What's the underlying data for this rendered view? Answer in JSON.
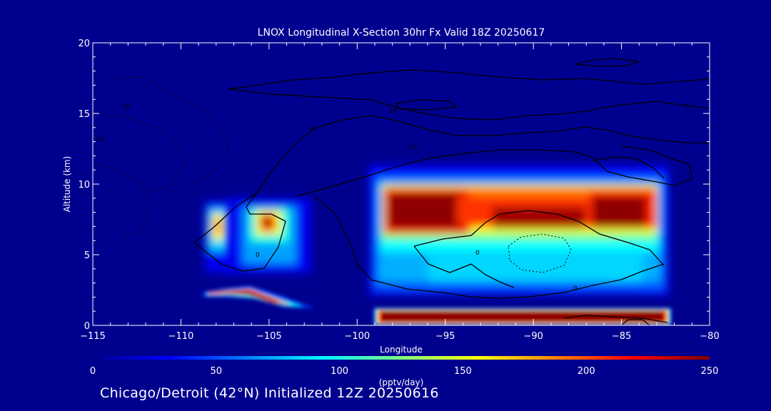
{
  "chart_data": {
    "type": "heatmap",
    "title": "LNOX Longitudinal X-Section 30hr  Fx Valid 18Z 20250617",
    "xlabel": "Longitude",
    "ylabel": "Altitude (km)",
    "xlim": [
      -115,
      -80
    ],
    "ylim": [
      0,
      20
    ],
    "xticks": [
      "-115",
      "-110",
      "-105",
      "-100",
      "-95",
      "-90",
      "-85",
      "-80"
    ],
    "xtick_values": [
      -115,
      -110,
      -105,
      -100,
      -95,
      -90,
      -85,
      -80
    ],
    "yticks": [
      "0",
      "5",
      "10",
      "15",
      "20"
    ],
    "ytick_values": [
      0,
      5,
      10,
      15,
      20
    ],
    "colorbar": {
      "label": "(pptv/day)",
      "range": [
        0,
        250
      ],
      "ticks": [
        "0",
        "50",
        "100",
        "150",
        "200",
        "250"
      ],
      "tick_values": [
        0,
        50,
        100,
        150,
        200,
        250
      ]
    },
    "regions": [
      {
        "name": "west-upper-left",
        "lon": [
          -109,
          -107
        ],
        "alt": [
          4.5,
          8.5
        ],
        "peak": 170
      },
      {
        "name": "west-upper-right",
        "lon": [
          -107,
          -103
        ],
        "alt": [
          4.0,
          8.5
        ],
        "peak": 230
      },
      {
        "name": "west-low",
        "lon": [
          -109,
          -102.5
        ],
        "alt": [
          1.1,
          2.6
        ],
        "peak": 250
      },
      {
        "name": "east-upper",
        "lon": [
          -98.5,
          -82.5
        ],
        "alt": [
          2.5,
          10.8
        ],
        "peak": 250
      },
      {
        "name": "east-low",
        "lon": [
          -99,
          -82.5
        ],
        "alt": [
          0.05,
          1.1
        ],
        "peak": 250
      }
    ],
    "contour_labels": [
      "10",
      "0",
      "-10",
      "0",
      "0",
      "10",
      "0",
      "-10",
      "0"
    ]
  },
  "footer": "Chicago/Detroit (42°N) Initialized 12Z 20250616"
}
